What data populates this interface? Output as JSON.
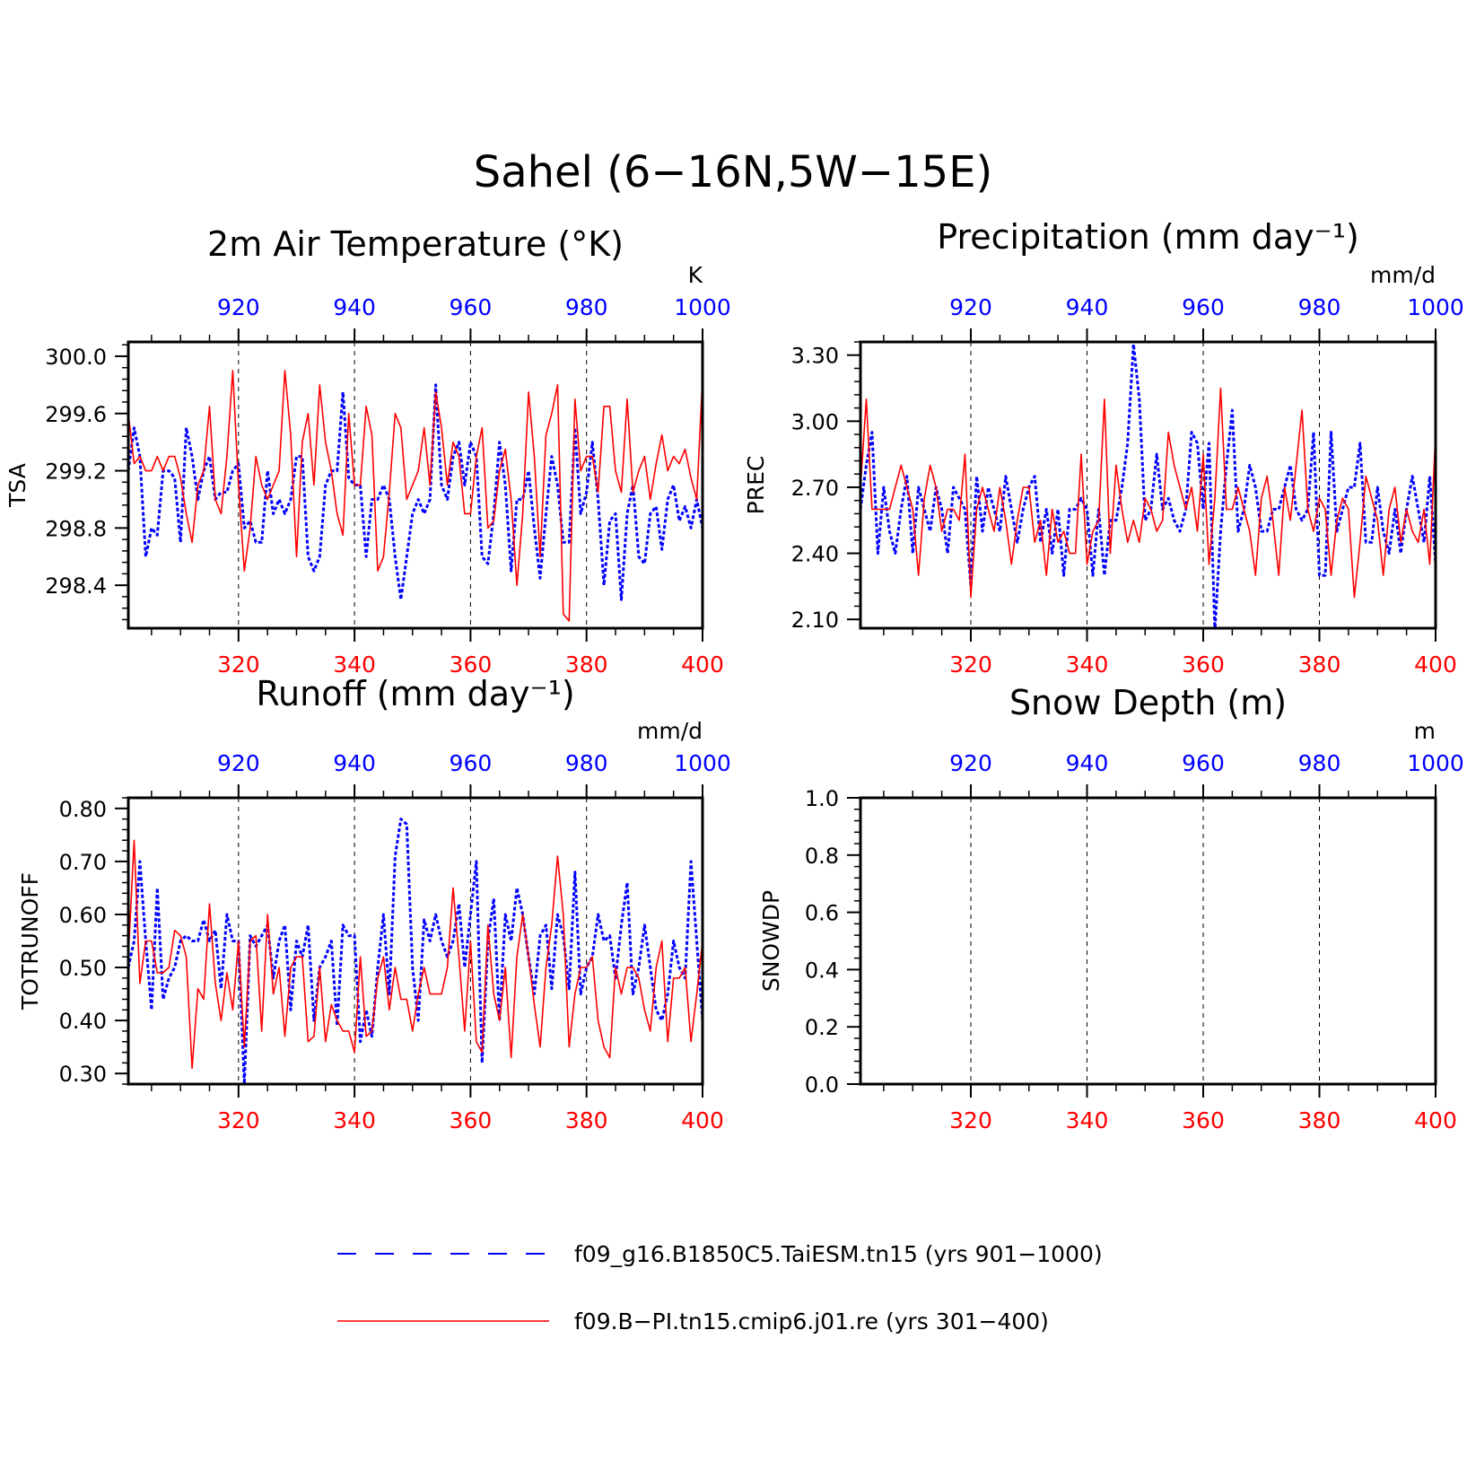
{
  "suptitle": "Sahel (6−16N,5W−15E)",
  "colors": {
    "model1": "#0000ff",
    "model2": "#ff0000",
    "axis": "#000000",
    "grid": "#000000"
  },
  "legend": [
    {
      "label": "f09_g16.B1850C5.TaiESM.tn15 (yrs 901−1000)",
      "color": "#0000ff",
      "style": "dashed"
    },
    {
      "label": "f09.B−PI.tn15.cmip6.j01.re (yrs 301−400)",
      "color": "#ff0000",
      "style": "solid"
    }
  ],
  "chart_data": [
    {
      "type": "line",
      "title": "2m Air Temperature (°K)",
      "ylabel": "TSA",
      "units": "K",
      "ylim": [
        298.1,
        300.1
      ],
      "yticks": [
        "300.0",
        "299.6",
        "299.2",
        "298.8",
        "298.4"
      ],
      "yticks_values": [
        300.0,
        299.6,
        299.2,
        298.8,
        298.4
      ],
      "x_bottom": {
        "range": [
          301,
          400
        ],
        "ticks": [
          "320",
          "340",
          "360",
          "380",
          "400"
        ],
        "tick_values": [
          320,
          340,
          360,
          380,
          400
        ]
      },
      "x_top": {
        "range": [
          901,
          1000
        ],
        "ticks": [
          "920",
          "940",
          "960",
          "980",
          "1000"
        ],
        "tick_values": [
          920,
          940,
          960,
          980,
          1000
        ]
      },
      "series": [
        {
          "years": "901−1000",
          "style": "dashed",
          "color": "#0000ff",
          "values": [
            299.2,
            299.5,
            299.3,
            298.6,
            298.8,
            298.75,
            299.2,
            299.2,
            299.15,
            298.7,
            299.5,
            299.3,
            299.0,
            299.2,
            299.3,
            299.0,
            299.05,
            299.05,
            299.2,
            299.25,
            298.8,
            298.85,
            298.7,
            298.7,
            299.2,
            298.9,
            299.0,
            298.9,
            299.0,
            299.3,
            299.3,
            298.6,
            298.5,
            298.6,
            299.1,
            299.2,
            299.2,
            299.75,
            299.15,
            299.1,
            299.1,
            298.6,
            299.0,
            299.0,
            299.1,
            299.0,
            298.6,
            298.3,
            298.6,
            298.9,
            299.0,
            298.9,
            299.0,
            299.8,
            299.1,
            299.0,
            299.3,
            299.4,
            299.1,
            299.4,
            299.3,
            298.6,
            298.55,
            298.9,
            299.4,
            299.1,
            298.5,
            299.0,
            299.0,
            299.2,
            298.8,
            298.45,
            298.9,
            299.3,
            299.1,
            298.7,
            298.7,
            299.5,
            298.9,
            299.05,
            299.4,
            299.0,
            298.4,
            298.85,
            298.9,
            298.3,
            298.9,
            299.1,
            298.6,
            298.55,
            298.9,
            298.95,
            298.65,
            299.0,
            299.1,
            298.85,
            298.95,
            298.8,
            299.0,
            298.8
          ]
        },
        {
          "years": "301−400",
          "style": "solid",
          "color": "#ff0000",
          "values": [
            299.6,
            299.25,
            299.3,
            299.2,
            299.2,
            299.3,
            299.2,
            299.3,
            299.3,
            299.15,
            298.9,
            298.7,
            299.1,
            299.2,
            299.65,
            299.0,
            298.9,
            299.3,
            299.9,
            299.1,
            298.5,
            298.8,
            299.3,
            299.1,
            299.0,
            299.1,
            299.2,
            299.9,
            299.45,
            298.6,
            299.4,
            299.6,
            299.1,
            299.8,
            299.4,
            299.2,
            298.9,
            298.75,
            299.6,
            299.1,
            299.1,
            299.65,
            299.45,
            298.5,
            298.6,
            299.05,
            299.6,
            299.5,
            299.0,
            299.1,
            299.2,
            299.5,
            299.1,
            299.75,
            299.5,
            299.1,
            299.4,
            299.3,
            298.9,
            298.9,
            299.3,
            299.5,
            298.8,
            298.85,
            299.2,
            299.35,
            299.0,
            298.4,
            298.9,
            299.75,
            299.3,
            298.6,
            299.45,
            299.6,
            299.8,
            298.2,
            298.15,
            299.7,
            299.2,
            299.3,
            299.3,
            299.05,
            299.65,
            299.65,
            299.2,
            299.05,
            299.7,
            299.05,
            299.2,
            299.3,
            299.0,
            299.25,
            299.45,
            299.2,
            299.3,
            299.25,
            299.35,
            299.15,
            299.0,
            299.85
          ]
        }
      ],
      "grid": "vertical dashed at top-axis ticks"
    },
    {
      "type": "line",
      "title": "Precipitation (mm day⁻¹)",
      "ylabel": "PREC",
      "units": "mm/d",
      "ylim": [
        2.06,
        3.36
      ],
      "yticks": [
        "3.30",
        "3.00",
        "2.70",
        "2.40",
        "2.10"
      ],
      "yticks_values": [
        3.3,
        3.0,
        2.7,
        2.4,
        2.1
      ],
      "x_bottom": {
        "range": [
          301,
          400
        ],
        "ticks": [
          "320",
          "340",
          "360",
          "380",
          "400"
        ],
        "tick_values": [
          320,
          340,
          360,
          380,
          400
        ]
      },
      "x_top": {
        "range": [
          901,
          1000
        ],
        "ticks": [
          "920",
          "940",
          "960",
          "980",
          "1000"
        ],
        "tick_values": [
          920,
          940,
          960,
          980,
          1000
        ]
      },
      "series": [
        {
          "years": "901−1000",
          "style": "dashed",
          "color": "#0000ff",
          "values": [
            2.6,
            2.8,
            2.95,
            2.4,
            2.7,
            2.5,
            2.4,
            2.6,
            2.75,
            2.4,
            2.7,
            2.6,
            2.5,
            2.7,
            2.6,
            2.4,
            2.7,
            2.65,
            2.6,
            2.25,
            2.75,
            2.5,
            2.7,
            2.6,
            2.5,
            2.75,
            2.6,
            2.45,
            2.6,
            2.7,
            2.75,
            2.45,
            2.6,
            2.4,
            2.6,
            2.3,
            2.6,
            2.6,
            2.65,
            2.6,
            2.3,
            2.6,
            2.3,
            2.55,
            2.55,
            2.7,
            2.9,
            3.35,
            3.1,
            2.55,
            2.6,
            2.85,
            2.6,
            2.65,
            2.55,
            2.5,
            2.6,
            2.95,
            2.9,
            2.6,
            2.9,
            2.05,
            2.5,
            2.8,
            3.05,
            2.5,
            2.6,
            2.8,
            2.7,
            2.5,
            2.5,
            2.6,
            2.6,
            2.7,
            2.8,
            2.6,
            2.55,
            2.6,
            2.95,
            2.3,
            2.3,
            2.95,
            2.5,
            2.6,
            2.7,
            2.7,
            2.9,
            2.45,
            2.45,
            2.7,
            2.5,
            2.4,
            2.6,
            2.4,
            2.6,
            2.75,
            2.6,
            2.45,
            2.75,
            2.35
          ]
        },
        {
          "years": "301−400",
          "style": "solid",
          "color": "#ff0000",
          "values": [
            2.7,
            3.1,
            2.6,
            2.6,
            2.6,
            2.6,
            2.7,
            2.8,
            2.7,
            2.6,
            2.3,
            2.65,
            2.8,
            2.7,
            2.5,
            2.6,
            2.6,
            2.55,
            2.85,
            2.2,
            2.6,
            2.7,
            2.6,
            2.5,
            2.7,
            2.55,
            2.35,
            2.55,
            2.7,
            2.7,
            2.45,
            2.55,
            2.3,
            2.6,
            2.45,
            2.5,
            2.4,
            2.4,
            2.85,
            2.35,
            2.5,
            2.55,
            3.1,
            2.4,
            2.8,
            2.6,
            2.45,
            2.55,
            2.45,
            2.65,
            2.6,
            2.5,
            2.55,
            2.95,
            2.8,
            2.7,
            2.6,
            2.7,
            2.5,
            2.85,
            2.35,
            2.65,
            3.15,
            2.6,
            2.6,
            2.7,
            2.6,
            2.5,
            2.3,
            2.65,
            2.75,
            2.55,
            2.3,
            2.7,
            2.55,
            2.8,
            3.05,
            2.6,
            2.5,
            2.65,
            2.6,
            2.3,
            2.55,
            2.65,
            2.6,
            2.2,
            2.45,
            2.75,
            2.65,
            2.55,
            2.3,
            2.6,
            2.7,
            2.45,
            2.6,
            2.5,
            2.45,
            2.6,
            2.35,
            2.95
          ]
        }
      ],
      "grid": "vertical dashed at top-axis ticks"
    },
    {
      "type": "line",
      "title": "Runoff (mm day⁻¹)",
      "ylabel": "TOTRUNOFF",
      "units": "mm/d",
      "ylim": [
        0.28,
        0.82
      ],
      "yticks": [
        "0.80",
        "0.70",
        "0.60",
        "0.50",
        "0.40",
        "0.30"
      ],
      "yticks_values": [
        0.8,
        0.7,
        0.6,
        0.5,
        0.4,
        0.3
      ],
      "x_bottom": {
        "range": [
          301,
          400
        ],
        "ticks": [
          "320",
          "340",
          "360",
          "380",
          "400"
        ],
        "tick_values": [
          320,
          340,
          360,
          380,
          400
        ]
      },
      "x_top": {
        "range": [
          901,
          1000
        ],
        "ticks": [
          "920",
          "940",
          "960",
          "980",
          "1000"
        ],
        "tick_values": [
          920,
          940,
          960,
          980,
          1000
        ]
      },
      "series": [
        {
          "years": "901−1000",
          "style": "dashed",
          "color": "#0000ff",
          "values": [
            0.5,
            0.55,
            0.7,
            0.55,
            0.42,
            0.65,
            0.44,
            0.48,
            0.5,
            0.55,
            0.56,
            0.55,
            0.55,
            0.59,
            0.55,
            0.57,
            0.46,
            0.6,
            0.55,
            0.55,
            0.28,
            0.56,
            0.54,
            0.56,
            0.58,
            0.48,
            0.55,
            0.58,
            0.42,
            0.55,
            0.52,
            0.58,
            0.4,
            0.5,
            0.52,
            0.55,
            0.39,
            0.58,
            0.56,
            0.56,
            0.36,
            0.42,
            0.37,
            0.5,
            0.6,
            0.45,
            0.71,
            0.78,
            0.77,
            0.5,
            0.4,
            0.59,
            0.55,
            0.6,
            0.55,
            0.52,
            0.55,
            0.62,
            0.5,
            0.6,
            0.7,
            0.32,
            0.55,
            0.63,
            0.4,
            0.6,
            0.55,
            0.65,
            0.6,
            0.52,
            0.45,
            0.56,
            0.58,
            0.46,
            0.6,
            0.56,
            0.46,
            0.68,
            0.45,
            0.5,
            0.52,
            0.6,
            0.55,
            0.56,
            0.48,
            0.58,
            0.66,
            0.45,
            0.5,
            0.58,
            0.5,
            0.42,
            0.4,
            0.45,
            0.55,
            0.5,
            0.48,
            0.7,
            0.55,
            0.4
          ]
        },
        {
          "years": "301−400",
          "style": "solid",
          "color": "#ff0000",
          "values": [
            0.52,
            0.74,
            0.47,
            0.55,
            0.55,
            0.49,
            0.49,
            0.5,
            0.57,
            0.56,
            0.52,
            0.31,
            0.46,
            0.44,
            0.62,
            0.47,
            0.4,
            0.49,
            0.42,
            0.55,
            0.35,
            0.55,
            0.56,
            0.38,
            0.6,
            0.45,
            0.5,
            0.37,
            0.5,
            0.52,
            0.52,
            0.36,
            0.37,
            0.5,
            0.36,
            0.43,
            0.4,
            0.38,
            0.38,
            0.34,
            0.52,
            0.37,
            0.38,
            0.48,
            0.52,
            0.42,
            0.5,
            0.44,
            0.44,
            0.38,
            0.45,
            0.5,
            0.45,
            0.45,
            0.45,
            0.5,
            0.65,
            0.52,
            0.38,
            0.55,
            0.36,
            0.34,
            0.58,
            0.45,
            0.4,
            0.5,
            0.33,
            0.52,
            0.6,
            0.52,
            0.43,
            0.35,
            0.5,
            0.58,
            0.71,
            0.6,
            0.35,
            0.45,
            0.5,
            0.5,
            0.52,
            0.4,
            0.35,
            0.33,
            0.5,
            0.45,
            0.5,
            0.5,
            0.48,
            0.42,
            0.38,
            0.5,
            0.55,
            0.36,
            0.48,
            0.48,
            0.5,
            0.36,
            0.45,
            0.55
          ]
        }
      ],
      "grid": "vertical dashed at top-axis ticks"
    },
    {
      "type": "line",
      "title": "Snow Depth (m)",
      "ylabel": "SNOWDP",
      "units": "m",
      "ylim": [
        0.0,
        1.0
      ],
      "yticks": [
        "1.0",
        "0.8",
        "0.6",
        "0.4",
        "0.2",
        "0.0"
      ],
      "yticks_values": [
        1.0,
        0.8,
        0.6,
        0.4,
        0.2,
        0.0
      ],
      "x_bottom": {
        "range": [
          301,
          400
        ],
        "ticks": [
          "320",
          "340",
          "360",
          "380",
          "400"
        ],
        "tick_values": [
          320,
          340,
          360,
          380,
          400
        ]
      },
      "x_top": {
        "range": [
          901,
          1000
        ],
        "ticks": [
          "920",
          "940",
          "960",
          "980",
          "1000"
        ],
        "tick_values": [
          920,
          940,
          960,
          980,
          1000
        ]
      },
      "series": [
        {
          "years": "901−1000",
          "style": "dashed",
          "color": "#0000ff",
          "values": [
            0
          ]
        },
        {
          "years": "301−400",
          "style": "solid",
          "color": "#ff0000",
          "values": [
            0
          ]
        }
      ],
      "grid": "vertical dashed at top-axis ticks"
    }
  ]
}
